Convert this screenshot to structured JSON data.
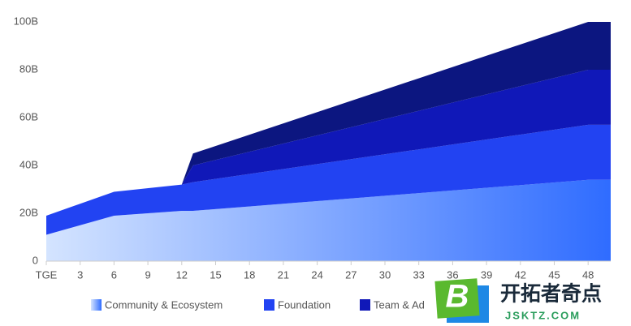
{
  "chart_data": {
    "type": "stacked-area",
    "x": [
      0,
      3,
      6,
      12,
      13,
      48,
      50
    ],
    "xlim": [
      0,
      50
    ],
    "xticks": [
      {
        "value": 0,
        "label": "TGE"
      },
      3,
      6,
      9,
      12,
      15,
      18,
      21,
      24,
      27,
      30,
      33,
      36,
      39,
      42,
      45,
      48
    ],
    "ylim": [
      0,
      100
    ],
    "yticks": [
      0,
      {
        "value": 20,
        "label": "20B"
      },
      {
        "value": 40,
        "label": "40B"
      },
      {
        "value": 60,
        "label": "60B"
      },
      {
        "value": 80,
        "label": "80B"
      },
      {
        "value": 100,
        "label": "100B"
      }
    ],
    "grid": false,
    "series": [
      {
        "name": "Community & Ecosystem",
        "color": "#2f6cff",
        "values": [
          11,
          15,
          19,
          21,
          21,
          34,
          34
        ]
      },
      {
        "name": "Foundation",
        "color": "#2243f2",
        "values": [
          8,
          9,
          10,
          11,
          12,
          23,
          23
        ]
      },
      {
        "name": "Team & Ad",
        "color": "#1018b8",
        "values": [
          0,
          0,
          0,
          0,
          7,
          23,
          23
        ]
      },
      {
        "color": "#0c1680",
        "values": [
          0,
          0,
          0,
          0,
          5,
          20,
          20
        ]
      }
    ]
  },
  "watermark": {
    "logo": "B",
    "title": "开拓者奇点",
    "url": "JSKTZ.COM"
  }
}
